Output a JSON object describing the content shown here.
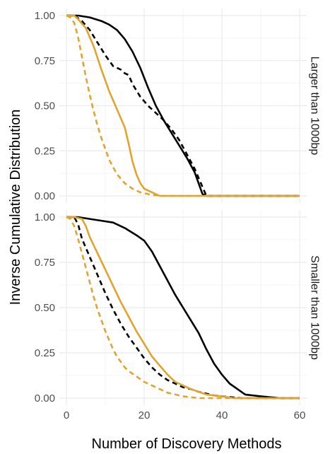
{
  "chart_data": {
    "type": "line",
    "xlabel": "Number of Discovery Methods",
    "ylabel": "Inverse Cumulative Distribution",
    "xlim": [
      0,
      60
    ],
    "ylim": [
      0,
      1
    ],
    "x_ticks": [
      "0",
      "20",
      "40",
      "60"
    ],
    "y_ticks": [
      "0.00",
      "0.25",
      "0.50",
      "0.75",
      "1.00"
    ],
    "grid": true,
    "legend": "none",
    "colors": {
      "black": "#000000",
      "gold": "#E1A42F",
      "grid": "#EBEBEB",
      "strip_bg": "#FFFFFF"
    },
    "panels": [
      {
        "strip": "Larger than 1000bp",
        "series": [
          {
            "color": "black",
            "dash": "solid",
            "points": [
              [
                0,
                1.0
              ],
              [
                3,
                1.0
              ],
              [
                6,
                0.99
              ],
              [
                9,
                0.97
              ],
              [
                11,
                0.95
              ],
              [
                13,
                0.92
              ],
              [
                15,
                0.87
              ],
              [
                17,
                0.8
              ],
              [
                19,
                0.71
              ],
              [
                21,
                0.6
              ],
              [
                23,
                0.5
              ],
              [
                25,
                0.42
              ],
              [
                27,
                0.35
              ],
              [
                29,
                0.28
              ],
              [
                31,
                0.21
              ],
              [
                33,
                0.13
              ],
              [
                34,
                0.07
              ],
              [
                35,
                0.01
              ],
              [
                36,
                0.0
              ],
              [
                40,
                0.0
              ],
              [
                50,
                0.0
              ],
              [
                60,
                0.0
              ]
            ]
          },
          {
            "color": "black",
            "dash": "dashed",
            "points": [
              [
                0,
                1.0
              ],
              [
                2,
                1.0
              ],
              [
                4,
                0.97
              ],
              [
                6,
                0.92
              ],
              [
                8,
                0.85
              ],
              [
                10,
                0.78
              ],
              [
                12,
                0.72
              ],
              [
                14,
                0.7
              ],
              [
                15,
                0.68
              ],
              [
                16,
                0.67
              ],
              [
                17,
                0.62
              ],
              [
                19,
                0.55
              ],
              [
                21,
                0.5
              ],
              [
                23,
                0.46
              ],
              [
                25,
                0.42
              ],
              [
                27,
                0.37
              ],
              [
                29,
                0.31
              ],
              [
                31,
                0.23
              ],
              [
                33,
                0.15
              ],
              [
                35,
                0.05
              ],
              [
                36,
                0.0
              ],
              [
                40,
                0.0
              ],
              [
                60,
                0.0
              ]
            ]
          },
          {
            "color": "gold",
            "dash": "solid",
            "points": [
              [
                0,
                1.0
              ],
              [
                2,
                1.0
              ],
              [
                3,
                0.98
              ],
              [
                5,
                0.93
              ],
              [
                7,
                0.83
              ],
              [
                9,
                0.7
              ],
              [
                11,
                0.58
              ],
              [
                13,
                0.48
              ],
              [
                15,
                0.38
              ],
              [
                16,
                0.29
              ],
              [
                17,
                0.19
              ],
              [
                18,
                0.12
              ],
              [
                19,
                0.07
              ],
              [
                20,
                0.04
              ],
              [
                22,
                0.02
              ],
              [
                24,
                0.0
              ],
              [
                30,
                0.0
              ],
              [
                60,
                0.0
              ]
            ]
          },
          {
            "color": "gold",
            "dash": "dashed",
            "points": [
              [
                0,
                1.0
              ],
              [
                1,
                0.99
              ],
              [
                2,
                0.96
              ],
              [
                3,
                0.88
              ],
              [
                4,
                0.77
              ],
              [
                5,
                0.66
              ],
              [
                6,
                0.56
              ],
              [
                7,
                0.47
              ],
              [
                8,
                0.39
              ],
              [
                9,
                0.32
              ],
              [
                10,
                0.26
              ],
              [
                11,
                0.2
              ],
              [
                12,
                0.16
              ],
              [
                13,
                0.12
              ],
              [
                15,
                0.07
              ],
              [
                17,
                0.04
              ],
              [
                19,
                0.02
              ],
              [
                22,
                0.005
              ],
              [
                25,
                0.0
              ],
              [
                60,
                0.0
              ]
            ]
          }
        ]
      },
      {
        "strip": "Smaller than 1000bp",
        "series": [
          {
            "color": "black",
            "dash": "solid",
            "points": [
              [
                0,
                1.0
              ],
              [
                3,
                1.0
              ],
              [
                6,
                0.99
              ],
              [
                9,
                0.98
              ],
              [
                12,
                0.97
              ],
              [
                15,
                0.94
              ],
              [
                18,
                0.9
              ],
              [
                20,
                0.87
              ],
              [
                22,
                0.81
              ],
              [
                24,
                0.73
              ],
              [
                26,
                0.65
              ],
              [
                28,
                0.57
              ],
              [
                30,
                0.5
              ],
              [
                32,
                0.43
              ],
              [
                34,
                0.36
              ],
              [
                36,
                0.27
              ],
              [
                38,
                0.19
              ],
              [
                40,
                0.13
              ],
              [
                42,
                0.08
              ],
              [
                44,
                0.05
              ],
              [
                46,
                0.02
              ],
              [
                50,
                0.01
              ],
              [
                55,
                0.0
              ],
              [
                60,
                0.0
              ]
            ]
          },
          {
            "color": "black",
            "dash": "dashed",
            "points": [
              [
                0,
                1.0
              ],
              [
                2,
                1.0
              ],
              [
                3,
                0.96
              ],
              [
                4,
                0.88
              ],
              [
                6,
                0.78
              ],
              [
                8,
                0.68
              ],
              [
                10,
                0.58
              ],
              [
                12,
                0.49
              ],
              [
                14,
                0.41
              ],
              [
                16,
                0.34
              ],
              [
                18,
                0.28
              ],
              [
                20,
                0.22
              ],
              [
                22,
                0.17
              ],
              [
                24,
                0.13
              ],
              [
                26,
                0.1
              ],
              [
                28,
                0.08
              ],
              [
                30,
                0.06
              ],
              [
                32,
                0.05
              ],
              [
                34,
                0.035
              ],
              [
                36,
                0.025
              ],
              [
                38,
                0.015
              ],
              [
                40,
                0.01
              ],
              [
                45,
                0.0
              ],
              [
                60,
                0.0
              ]
            ]
          },
          {
            "color": "gold",
            "dash": "solid",
            "points": [
              [
                0,
                1.0
              ],
              [
                2,
                1.0
              ],
              [
                4,
                0.99
              ],
              [
                5,
                0.95
              ],
              [
                6,
                0.89
              ],
              [
                8,
                0.8
              ],
              [
                10,
                0.71
              ],
              [
                12,
                0.62
              ],
              [
                14,
                0.53
              ],
              [
                16,
                0.45
              ],
              [
                18,
                0.37
              ],
              [
                20,
                0.3
              ],
              [
                22,
                0.23
              ],
              [
                24,
                0.18
              ],
              [
                26,
                0.13
              ],
              [
                28,
                0.09
              ],
              [
                30,
                0.07
              ],
              [
                32,
                0.05
              ],
              [
                34,
                0.035
              ],
              [
                36,
                0.02
              ],
              [
                38,
                0.015
              ],
              [
                40,
                0.01
              ],
              [
                43,
                0.0
              ],
              [
                60,
                0.0
              ]
            ]
          },
          {
            "color": "gold",
            "dash": "dashed",
            "points": [
              [
                0,
                1.0
              ],
              [
                1,
                0.99
              ],
              [
                2,
                0.95
              ],
              [
                3,
                0.88
              ],
              [
                4,
                0.8
              ],
              [
                5,
                0.72
              ],
              [
                6,
                0.64
              ],
              [
                7,
                0.56
              ],
              [
                8,
                0.49
              ],
              [
                9,
                0.43
              ],
              [
                10,
                0.37
              ],
              [
                11,
                0.32
              ],
              [
                12,
                0.27
              ],
              [
                13,
                0.23
              ],
              [
                14,
                0.2
              ],
              [
                15,
                0.17
              ],
              [
                16,
                0.15
              ],
              [
                18,
                0.12
              ],
              [
                20,
                0.09
              ],
              [
                22,
                0.07
              ],
              [
                24,
                0.05
              ],
              [
                26,
                0.03
              ],
              [
                28,
                0.02
              ],
              [
                30,
                0.01
              ],
              [
                34,
                0.0
              ],
              [
                60,
                0.0
              ]
            ]
          }
        ]
      }
    ]
  }
}
